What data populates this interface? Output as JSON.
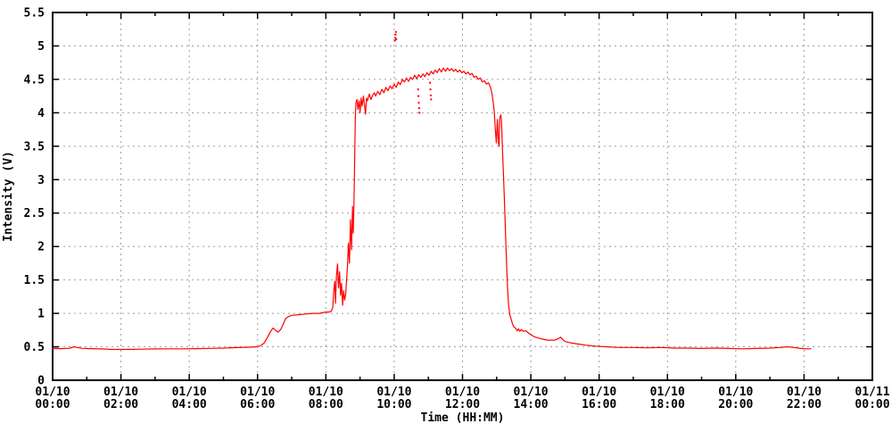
{
  "colors": {
    "background": "#ffffff",
    "grid": "#9e9e9e",
    "axis": "#000000",
    "text": "#000000",
    "series": "#ff0000"
  },
  "chart_data": {
    "type": "line",
    "title": "",
    "xlabel": "Time (HH:MM)",
    "ylabel": "Intensity (V)",
    "xlim_hours": [
      0,
      24
    ],
    "ylim": [
      0,
      5.5
    ],
    "x_major_tick_hours": 2,
    "x_minor_tick_hours": 1,
    "y_tick_step": 0.5,
    "grid": true,
    "legend_position": "none",
    "x_tick_labels": [
      {
        "date": "01/10",
        "time": "00:00"
      },
      {
        "date": "01/10",
        "time": "02:00"
      },
      {
        "date": "01/10",
        "time": "04:00"
      },
      {
        "date": "01/10",
        "time": "06:00"
      },
      {
        "date": "01/10",
        "time": "08:00"
      },
      {
        "date": "01/10",
        "time": "10:00"
      },
      {
        "date": "01/10",
        "time": "12:00"
      },
      {
        "date": "01/10",
        "time": "14:00"
      },
      {
        "date": "01/10",
        "time": "16:00"
      },
      {
        "date": "01/10",
        "time": "18:00"
      },
      {
        "date": "01/10",
        "time": "20:00"
      },
      {
        "date": "01/10",
        "time": "22:00"
      },
      {
        "date": "01/11",
        "time": "00:00"
      }
    ],
    "y_tick_labels": [
      "0",
      "0.5",
      "1",
      "1.5",
      "2",
      "2.5",
      "3",
      "3.5",
      "4",
      "4.5",
      "5",
      "5.5"
    ],
    "series": [
      {
        "name": "intensity",
        "color": "#ff0000",
        "style": "line",
        "points": [
          [
            0,
            0.475
          ],
          [
            0.25,
            0.472
          ],
          [
            0.5,
            0.478
          ],
          [
            0.62,
            0.5
          ],
          [
            0.72,
            0.49
          ],
          [
            0.85,
            0.478
          ],
          [
            1.1,
            0.472
          ],
          [
            1.4,
            0.468
          ],
          [
            1.7,
            0.462
          ],
          [
            2,
            0.46
          ],
          [
            2.3,
            0.462
          ],
          [
            2.6,
            0.465
          ],
          [
            3,
            0.468
          ],
          [
            3.4,
            0.47
          ],
          [
            3.8,
            0.47
          ],
          [
            4.2,
            0.472
          ],
          [
            4.6,
            0.476
          ],
          [
            5,
            0.48
          ],
          [
            5.4,
            0.488
          ],
          [
            5.8,
            0.495
          ],
          [
            6,
            0.5
          ],
          [
            6.1,
            0.52
          ],
          [
            6.2,
            0.56
          ],
          [
            6.3,
            0.65
          ],
          [
            6.38,
            0.73
          ],
          [
            6.45,
            0.78
          ],
          [
            6.52,
            0.75
          ],
          [
            6.6,
            0.72
          ],
          [
            6.68,
            0.76
          ],
          [
            6.75,
            0.84
          ],
          [
            6.82,
            0.92
          ],
          [
            6.9,
            0.95
          ],
          [
            7,
            0.97
          ],
          [
            7.2,
            0.98
          ],
          [
            7.4,
            0.99
          ],
          [
            7.6,
            1.0
          ],
          [
            7.8,
            1.0
          ],
          [
            8,
            1.02
          ],
          [
            8.1,
            1.02
          ],
          [
            8.15,
            1.03
          ],
          [
            8.2,
            1.08
          ],
          [
            8.23,
            1.32
          ],
          [
            8.26,
            1.48
          ],
          [
            8.28,
            1.15
          ],
          [
            8.31,
            1.56
          ],
          [
            8.34,
            1.74
          ],
          [
            8.37,
            1.38
          ],
          [
            8.4,
            1.62
          ],
          [
            8.43,
            1.27
          ],
          [
            8.46,
            1.45
          ],
          [
            8.49,
            1.12
          ],
          [
            8.52,
            1.34
          ],
          [
            8.55,
            1.2
          ],
          [
            8.58,
            1.28
          ],
          [
            8.6,
            1.45
          ],
          [
            8.63,
            1.7
          ],
          [
            8.66,
            2.05
          ],
          [
            8.69,
            1.75
          ],
          [
            8.72,
            2.4
          ],
          [
            8.75,
            1.95
          ],
          [
            8.78,
            2.6
          ],
          [
            8.8,
            2.2
          ],
          [
            8.82,
            2.55
          ],
          [
            8.84,
            3.2
          ],
          [
            8.86,
            3.9
          ],
          [
            8.88,
            4.15
          ],
          [
            8.91,
            4.2
          ],
          [
            8.94,
            4.05
          ],
          [
            8.97,
            4.18
          ],
          [
            9,
            4.0
          ],
          [
            9.03,
            4.22
          ],
          [
            9.06,
            4.1
          ],
          [
            9.1,
            4.25
          ],
          [
            9.13,
            4.12
          ],
          [
            9.16,
            3.98
          ],
          [
            9.19,
            4.22
          ],
          [
            9.22,
            4.18
          ],
          [
            9.27,
            4.28
          ],
          [
            9.32,
            4.2
          ],
          [
            9.37,
            4.26
          ],
          [
            9.42,
            4.3
          ],
          [
            9.46,
            4.25
          ],
          [
            9.52,
            4.32
          ],
          [
            9.58,
            4.27
          ],
          [
            9.64,
            4.35
          ],
          [
            9.7,
            4.3
          ],
          [
            9.76,
            4.38
          ],
          [
            9.82,
            4.33
          ],
          [
            9.88,
            4.4
          ],
          [
            9.94,
            4.36
          ],
          [
            10,
            4.43
          ],
          [
            10.06,
            4.38
          ],
          [
            10.12,
            4.46
          ],
          [
            10.18,
            4.42
          ],
          [
            10.24,
            4.5
          ],
          [
            10.3,
            4.46
          ],
          [
            10.36,
            4.52
          ],
          [
            10.42,
            4.47
          ],
          [
            10.48,
            4.53
          ],
          [
            10.54,
            4.5
          ],
          [
            10.6,
            4.56
          ],
          [
            10.66,
            4.51
          ],
          [
            10.72,
            4.57
          ],
          [
            10.78,
            4.53
          ],
          [
            10.84,
            4.58
          ],
          [
            10.9,
            4.54
          ],
          [
            10.96,
            4.6
          ],
          [
            11.02,
            4.56
          ],
          [
            11.08,
            4.62
          ],
          [
            11.14,
            4.58
          ],
          [
            11.2,
            4.64
          ],
          [
            11.26,
            4.6
          ],
          [
            11.32,
            4.66
          ],
          [
            11.38,
            4.61
          ],
          [
            11.44,
            4.67
          ],
          [
            11.5,
            4.62
          ],
          [
            11.56,
            4.67
          ],
          [
            11.62,
            4.63
          ],
          [
            11.68,
            4.66
          ],
          [
            11.74,
            4.62
          ],
          [
            11.8,
            4.65
          ],
          [
            11.86,
            4.61
          ],
          [
            11.92,
            4.64
          ],
          [
            11.98,
            4.6
          ],
          [
            12.04,
            4.62
          ],
          [
            12.1,
            4.58
          ],
          [
            12.16,
            4.61
          ],
          [
            12.22,
            4.57
          ],
          [
            12.28,
            4.59
          ],
          [
            12.34,
            4.53
          ],
          [
            12.4,
            4.55
          ],
          [
            12.46,
            4.5
          ],
          [
            12.52,
            4.52
          ],
          [
            12.58,
            4.46
          ],
          [
            12.64,
            4.48
          ],
          [
            12.7,
            4.43
          ],
          [
            12.76,
            4.45
          ],
          [
            12.82,
            4.38
          ],
          [
            12.86,
            4.3
          ],
          [
            12.9,
            4.15
          ],
          [
            12.93,
            4.02
          ],
          [
            12.96,
            3.75
          ],
          [
            12.99,
            3.55
          ],
          [
            13.02,
            3.9
          ],
          [
            13.05,
            3.55
          ],
          [
            13.07,
            3.5
          ],
          [
            13.09,
            3.92
          ],
          [
            13.12,
            3.97
          ],
          [
            13.14,
            3.88
          ],
          [
            13.17,
            3.45
          ],
          [
            13.2,
            3.05
          ],
          [
            13.23,
            2.65
          ],
          [
            13.26,
            2.2
          ],
          [
            13.29,
            1.75
          ],
          [
            13.32,
            1.38
          ],
          [
            13.35,
            1.12
          ],
          [
            13.39,
            0.97
          ],
          [
            13.43,
            0.9
          ],
          [
            13.46,
            0.85
          ],
          [
            13.5,
            0.8
          ],
          [
            13.55,
            0.78
          ],
          [
            13.6,
            0.74
          ],
          [
            13.64,
            0.77
          ],
          [
            13.68,
            0.73
          ],
          [
            13.72,
            0.76
          ],
          [
            13.78,
            0.73
          ],
          [
            13.85,
            0.74
          ],
          [
            13.95,
            0.7
          ],
          [
            14.1,
            0.65
          ],
          [
            14.3,
            0.62
          ],
          [
            14.5,
            0.6
          ],
          [
            14.7,
            0.6
          ],
          [
            14.8,
            0.62
          ],
          [
            14.87,
            0.645
          ],
          [
            14.93,
            0.61
          ],
          [
            15,
            0.58
          ],
          [
            15.2,
            0.555
          ],
          [
            15.4,
            0.54
          ],
          [
            15.6,
            0.525
          ],
          [
            15.9,
            0.51
          ],
          [
            16.2,
            0.5
          ],
          [
            16.6,
            0.49
          ],
          [
            17,
            0.49
          ],
          [
            17.4,
            0.485
          ],
          [
            17.8,
            0.49
          ],
          [
            18.2,
            0.48
          ],
          [
            18.6,
            0.48
          ],
          [
            19,
            0.475
          ],
          [
            19.4,
            0.48
          ],
          [
            19.8,
            0.475
          ],
          [
            20.2,
            0.47
          ],
          [
            20.6,
            0.475
          ],
          [
            21,
            0.48
          ],
          [
            21.3,
            0.49
          ],
          [
            21.5,
            0.5
          ],
          [
            21.7,
            0.49
          ],
          [
            21.9,
            0.475
          ],
          [
            22.05,
            0.47
          ],
          [
            22.2,
            0.47
          ]
        ]
      },
      {
        "name": "intensity-outliers",
        "color": "#ff0000",
        "style": "dots",
        "points": [
          [
            10.02,
            5.08
          ],
          [
            10.03,
            5.12
          ],
          [
            10.04,
            5.17
          ],
          [
            10.05,
            5.21
          ],
          [
            10.06,
            5.1
          ],
          [
            10.7,
            4.35
          ],
          [
            10.71,
            4.25
          ],
          [
            10.72,
            4.15
          ],
          [
            10.73,
            4.07
          ],
          [
            10.74,
            4.0
          ],
          [
            11.05,
            4.45
          ],
          [
            11.06,
            4.35
          ],
          [
            11.07,
            4.26
          ],
          [
            11.08,
            4.2
          ]
        ]
      }
    ]
  }
}
